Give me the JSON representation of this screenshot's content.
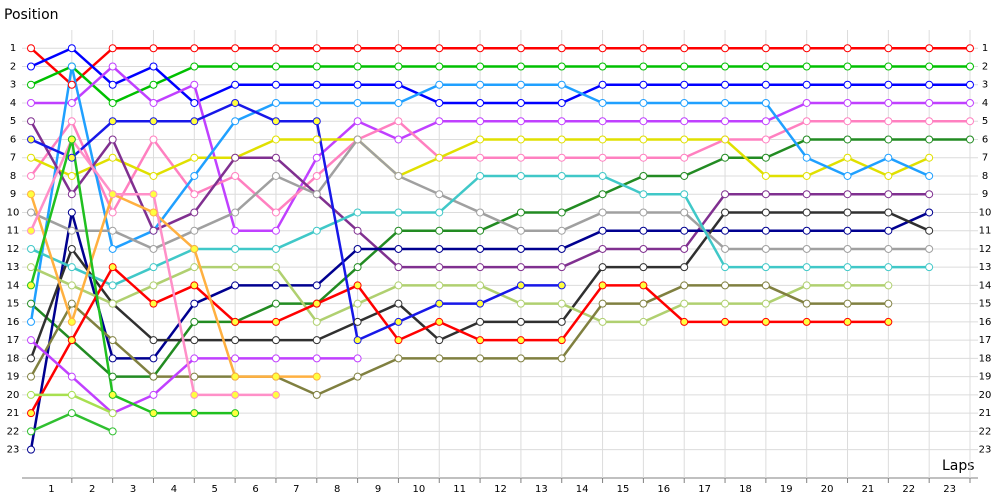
{
  "chart_data": {
    "type": "line",
    "y_title": "Position",
    "x_title": "Laps",
    "x": [
      0,
      1,
      2,
      3,
      4,
      5,
      6,
      7,
      8,
      9,
      10,
      11,
      12,
      13,
      14,
      15,
      16,
      17,
      18,
      19,
      20,
      21,
      22,
      23
    ],
    "xlim": [
      0,
      23
    ],
    "xticks": [
      1,
      2,
      3,
      4,
      5,
      6,
      7,
      8,
      9,
      10,
      11,
      12,
      13,
      14,
      15,
      16,
      17,
      18,
      19,
      20,
      21,
      22,
      23
    ],
    "ylim": [
      24.5,
      0
    ],
    "yticks": [
      1,
      2,
      3,
      4,
      5,
      6,
      7,
      8,
      9,
      10,
      11,
      12,
      13,
      14,
      15,
      16,
      17,
      18,
      19,
      20,
      21,
      22,
      23
    ],
    "grid": true,
    "series": [
      {
        "color": "#ff0000",
        "marker_fill": "#ffffff",
        "values": [
          1,
          3,
          1,
          1,
          1,
          1,
          1,
          1,
          1,
          1,
          1,
          1,
          1,
          1,
          1,
          1,
          1,
          1,
          1,
          1,
          1,
          1,
          1,
          1
        ]
      },
      {
        "color": "#00c000",
        "marker_fill": "#ffffff",
        "values": [
          3,
          2,
          4,
          3,
          2,
          2,
          2,
          2,
          2,
          2,
          2,
          2,
          2,
          2,
          2,
          2,
          2,
          2,
          2,
          2,
          2,
          2,
          2,
          2
        ]
      },
      {
        "color": "#0000ff",
        "marker_fill": "#ffffff",
        "values": [
          2,
          1,
          3,
          2,
          4,
          3,
          3,
          3,
          3,
          3,
          4,
          4,
          4,
          4,
          3,
          3,
          3,
          3,
          3,
          3,
          3,
          3,
          3,
          3
        ]
      },
      {
        "color": "#c040ff",
        "marker_fill": "#ffffff",
        "values": [
          4,
          4,
          2,
          4,
          3,
          11,
          11,
          7,
          5,
          6,
          5,
          5,
          5,
          5,
          5,
          5,
          5,
          5,
          5,
          4,
          4,
          4,
          4,
          4
        ]
      },
      {
        "color": "#ff80c0",
        "marker_fill": "#ffffff",
        "values": [
          8,
          5,
          10,
          6,
          9,
          8,
          10,
          8,
          6,
          5,
          7,
          7,
          7,
          7,
          7,
          7,
          7,
          6,
          6,
          5,
          5,
          5,
          5,
          5
        ]
      },
      {
        "color": "#228b22",
        "marker_fill": "#ffffff",
        "values": [
          15,
          17,
          19,
          19,
          16,
          16,
          15,
          15,
          13,
          11,
          11,
          11,
          10,
          10,
          9,
          8,
          8,
          7,
          7,
          6,
          6,
          6,
          6,
          6
        ]
      },
      {
        "color": "#e0e000",
        "marker_fill": "#ffffff",
        "values": [
          7,
          8,
          7,
          8,
          7,
          7,
          6,
          6,
          6,
          8,
          7,
          6,
          6,
          6,
          6,
          6,
          6,
          6,
          8,
          8,
          7,
          8,
          7,
          null
        ]
      },
      {
        "color": "#20a0ff",
        "marker_fill": "#ffffff",
        "values": [
          16,
          2,
          12,
          11,
          8,
          5,
          4,
          4,
          4,
          4,
          3,
          3,
          3,
          3,
          4,
          4,
          4,
          4,
          4,
          7,
          8,
          7,
          8,
          null
        ]
      },
      {
        "color": "#803090",
        "marker_fill": "#ffffff",
        "values": [
          5,
          9,
          6,
          11,
          10,
          7,
          7,
          9,
          11,
          13,
          13,
          13,
          13,
          13,
          12,
          12,
          12,
          9,
          9,
          9,
          9,
          9,
          9,
          null
        ]
      },
      {
        "color": "#000090",
        "marker_fill": "#ffffff",
        "values": [
          23,
          10,
          18,
          18,
          15,
          14,
          14,
          14,
          12,
          12,
          12,
          12,
          12,
          12,
          11,
          11,
          11,
          11,
          11,
          11,
          11,
          11,
          10,
          null
        ]
      },
      {
        "color": "#303030",
        "marker_fill": "#ffffff",
        "values": [
          18,
          12,
          15,
          17,
          17,
          17,
          17,
          17,
          16,
          15,
          17,
          16,
          16,
          16,
          13,
          13,
          13,
          10,
          10,
          10,
          10,
          10,
          11,
          null
        ]
      },
      {
        "color": "#a0a0a0",
        "marker_fill": "#ffffff",
        "values": [
          10,
          11,
          11,
          12,
          11,
          10,
          8,
          9,
          6,
          8,
          9,
          10,
          11,
          11,
          10,
          10,
          10,
          12,
          12,
          12,
          12,
          12,
          12,
          null
        ]
      },
      {
        "color": "#40c8c8",
        "marker_fill": "#ffffff",
        "values": [
          12,
          13,
          14,
          13,
          12,
          12,
          12,
          11,
          10,
          10,
          10,
          8,
          8,
          8,
          8,
          9,
          9,
          13,
          13,
          13,
          13,
          13,
          13,
          null
        ]
      },
      {
        "color": "#b0d070",
        "marker_fill": "#ffffff",
        "values": [
          13,
          14,
          15,
          14,
          13,
          13,
          13,
          16,
          15,
          14,
          14,
          14,
          15,
          15,
          16,
          16,
          15,
          15,
          15,
          14,
          14,
          14,
          null,
          null
        ]
      },
      {
        "color": "#808040",
        "marker_fill": "#ffffff",
        "values": [
          19,
          15,
          17,
          19,
          19,
          19,
          19,
          20,
          19,
          18,
          18,
          18,
          18,
          18,
          15,
          15,
          14,
          14,
          14,
          15,
          15,
          15,
          null,
          null
        ]
      },
      {
        "color": "#ff0000",
        "marker_fill": "#ffff40",
        "values": [
          21,
          17,
          13,
          15,
          14,
          16,
          16,
          15,
          14,
          17,
          16,
          17,
          17,
          17,
          14,
          14,
          16,
          16,
          16,
          16,
          16,
          16,
          null,
          null
        ]
      },
      {
        "color": "#1818e8",
        "marker_fill": "#ffff40",
        "values": [
          6,
          7,
          5,
          5,
          5,
          4,
          5,
          5,
          17,
          16,
          15,
          15,
          14,
          14,
          null,
          null,
          null,
          null,
          null,
          null,
          null,
          null,
          null,
          null
        ]
      },
      {
        "color": "#c040ff",
        "marker_fill": "#ffffff",
        "values": [
          17,
          19,
          21,
          20,
          18,
          18,
          18,
          18,
          18,
          null,
          null,
          null,
          null,
          null,
          null,
          null,
          null,
          null,
          null,
          null,
          null,
          null,
          null,
          null
        ]
      },
      {
        "color": "#ffb040",
        "marker_fill": "#ffff40",
        "values": [
          9,
          16,
          9,
          10,
          12,
          19,
          19,
          19,
          null,
          null,
          null,
          null,
          null,
          null,
          null,
          null,
          null,
          null,
          null,
          null,
          null,
          null,
          null,
          null
        ]
      },
      {
        "color": "#ff90c8",
        "marker_fill": "#ffff40",
        "values": [
          11,
          6,
          9,
          9,
          20,
          20,
          20,
          null,
          null,
          null,
          null,
          null,
          null,
          null,
          null,
          null,
          null,
          null,
          null,
          null,
          null,
          null,
          null,
          null
        ]
      },
      {
        "color": "#20c020",
        "marker_fill": "#ffff40",
        "values": [
          14,
          6,
          20,
          21,
          21,
          21,
          null,
          null,
          null,
          null,
          null,
          null,
          null,
          null,
          null,
          null,
          null,
          null,
          null,
          null,
          null,
          null,
          null,
          null
        ]
      },
      {
        "color": "#a8e050",
        "marker_fill": "#ffffff",
        "values": [
          20,
          20,
          21,
          null,
          null,
          null,
          null,
          null,
          null,
          null,
          null,
          null,
          null,
          null,
          null,
          null,
          null,
          null,
          null,
          null,
          null,
          null,
          null,
          null
        ]
      },
      {
        "color": "#30c030",
        "marker_fill": "#ffffff",
        "values": [
          22,
          21,
          22,
          null,
          null,
          null,
          null,
          null,
          null,
          null,
          null,
          null,
          null,
          null,
          null,
          null,
          null,
          null,
          null,
          null,
          null,
          null,
          null,
          null
        ]
      }
    ]
  }
}
